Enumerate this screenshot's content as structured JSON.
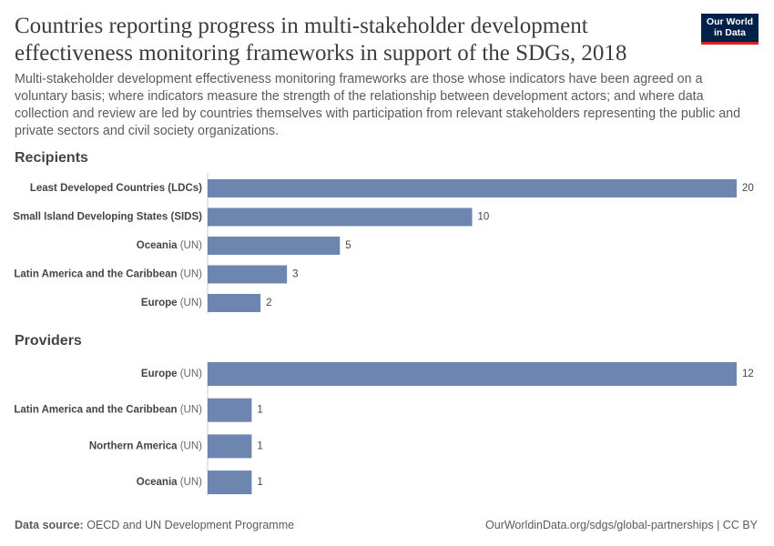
{
  "header": {
    "title": "Countries reporting progress in multi-stakeholder development effectiveness monitoring frameworks in support of the SDGs, 2018",
    "subtitle": "Multi-stakeholder development effectiveness monitoring frameworks are those whose indicators have been agreed on a voluntary basis; where indicators measure the strength of the relationship between development actors; and where data collection and review are led by countries themselves with participation from relevant stakeholders representing the public and private sectors and civil society organizations."
  },
  "logo": "Our World in Data",
  "chart_data": [
    {
      "type": "bar",
      "title": "Recipients",
      "color": "#6d86b0",
      "categories": [
        "Least Developed Countries (LDCs)",
        "Small Island Developing States (SIDS)",
        "Oceania (UN)",
        "Latin America and the Caribbean (UN)",
        "Europe (UN)"
      ],
      "values": [
        20,
        10,
        5,
        3,
        2
      ],
      "xlim": [
        0,
        20
      ]
    },
    {
      "type": "bar",
      "title": "Providers",
      "color": "#6d86b0",
      "categories": [
        "Europe (UN)",
        "Latin America and the Caribbean (UN)",
        "Northern America (UN)",
        "Oceania (UN)"
      ],
      "values": [
        12,
        1,
        1,
        1
      ],
      "xlim": [
        0,
        12
      ]
    }
  ],
  "footer": {
    "source_label": "Data source:",
    "source": "OECD and UN Development Programme",
    "url": "OurWorldinData.org/sdgs/global-partnerships | CC BY"
  }
}
